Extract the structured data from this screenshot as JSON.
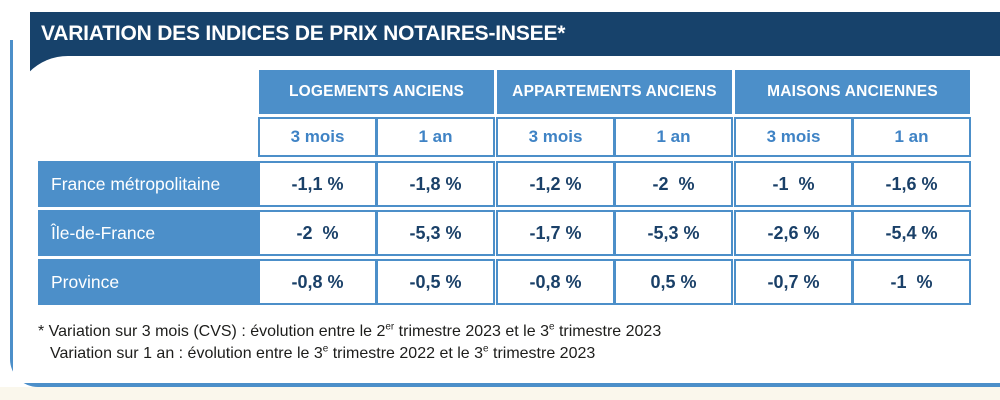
{
  "header": {
    "title": "VARIATION DES INDICES DE PRIX NOTAIRES-INSEE*"
  },
  "table": {
    "groups": [
      {
        "label": "LOGEMENTS ANCIENS"
      },
      {
        "label": "APPARTEMENTS ANCIENS"
      },
      {
        "label": "MAISONS ANCIENNES"
      }
    ],
    "subheaders": [
      "3 mois",
      "1 an",
      "3 mois",
      "1 an",
      "3 mois",
      "1 an"
    ],
    "rows": [
      {
        "label": "France métropolitaine",
        "values": [
          "-1,1 %",
          "-1,8 %",
          "-1,2 %",
          "-2  %",
          "-1  %",
          "-1,6 %"
        ]
      },
      {
        "label": "Île-de-France",
        "values": [
          "-2  %",
          "-5,3 %",
          "-1,7 %",
          "-5,3 %",
          "-2,6 %",
          "-5,4 %"
        ]
      },
      {
        "label": "Province",
        "values": [
          "-0,8 %",
          "-0,5 %",
          "-0,8 %",
          "0,5 %",
          "-0,7 %",
          "-1  %"
        ]
      }
    ]
  },
  "footnote": {
    "line1": {
      "p1": "* Variation sur 3 mois (CVS) : évolution entre le 2",
      "sup1": "er",
      "p2": " trimestre 2023 et le 3",
      "sup2": "e",
      "p3": " trimestre 2023"
    },
    "line2": {
      "p1": "Variation sur 1 an : évolution entre le 3",
      "sup1": "e",
      "p2": " trimestre 2022 et le 3",
      "sup2": "e",
      "p3": " trimestre 2023"
    }
  },
  "colors": {
    "dark_navy": "#17426B",
    "medium_blue": "#4C8FC9",
    "value_text": "#1A4068",
    "subheader_text": "#3F83C5"
  },
  "chart_data": {
    "type": "table",
    "title": "VARIATION DES INDICES DE PRIX NOTAIRES-INSEE*",
    "column_groups": [
      "LOGEMENTS ANCIENS",
      "APPARTEMENTS ANCIENS",
      "MAISONS ANCIENNES"
    ],
    "columns": [
      "3 mois",
      "1 an",
      "3 mois",
      "1 an",
      "3 mois",
      "1 an"
    ],
    "rows": [
      {
        "label": "France métropolitaine",
        "values_pct": [
          -1.1,
          -1.8,
          -1.2,
          -2.0,
          -1.0,
          -1.6
        ]
      },
      {
        "label": "Île-de-France",
        "values_pct": [
          -2.0,
          -5.3,
          -1.7,
          -5.3,
          -2.6,
          -5.4
        ]
      },
      {
        "label": "Province",
        "values_pct": [
          -0.8,
          -0.5,
          -0.8,
          0.5,
          -0.7,
          -1.0
        ]
      }
    ],
    "unit": "%",
    "notes": [
      "Variation sur 3 mois (CVS) : évolution entre le 2er trimestre 2023 et le 3e trimestre 2023",
      "Variation sur 1 an : évolution entre le 3e trimestre 2022 et le 3e trimestre 2023"
    ]
  }
}
